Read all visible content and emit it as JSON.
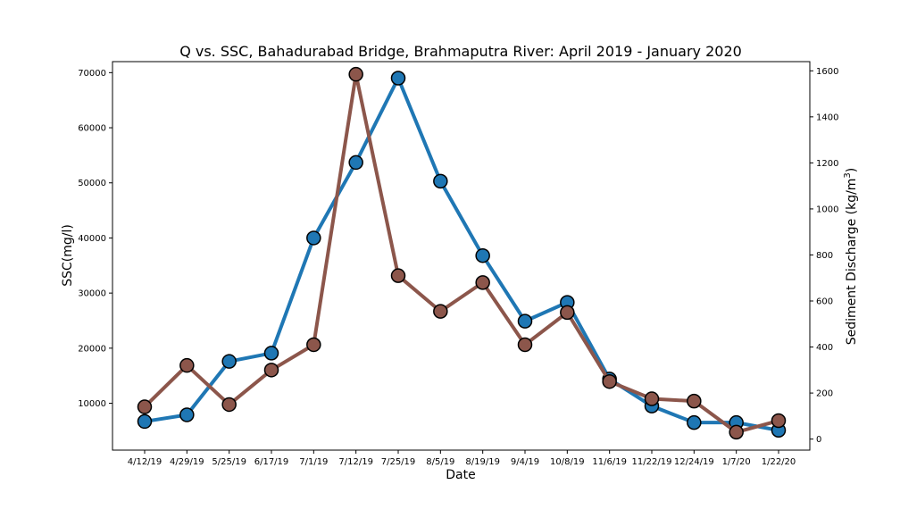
{
  "chart_data": {
    "type": "line",
    "title": "Q vs. SSC, Bahadurabad Bridge, Brahmaputra River: April 2019 - January 2020",
    "xlabel": "Date",
    "ylabel_left": "SSC(mg/l)",
    "ylabel_right_prefix": "Sediment Discharge (kg/m",
    "ylabel_right_sup": "3",
    "ylabel_right_suffix": ")",
    "categories": [
      "4/12/19",
      "4/29/19",
      "5/25/19",
      "6/17/19",
      "7/1/19",
      "7/12/19",
      "7/25/19",
      "8/5/19",
      "8/19/19",
      "9/4/19",
      "10/8/19",
      "11/6/19",
      "11/22/19",
      "12/24/19",
      "1/7/20",
      "1/22/20"
    ],
    "left_axis": {
      "ylim": [
        1500,
        72000
      ],
      "ticks": [
        10000,
        20000,
        30000,
        40000,
        50000,
        60000,
        70000
      ]
    },
    "right_axis": {
      "ylim": [
        -48,
        1640
      ],
      "ticks": [
        0,
        200,
        400,
        600,
        800,
        1000,
        1200,
        1400,
        1600
      ]
    },
    "series": [
      {
        "axis": "left",
        "color": "#1f77b4",
        "values": [
          6700,
          7900,
          17600,
          19100,
          40000,
          53700,
          69000,
          50300,
          36800,
          24900,
          28300,
          14400,
          9500,
          6500,
          6500,
          5100
        ]
      },
      {
        "axis": "right",
        "color": "#8c564b",
        "values": [
          140,
          320,
          150,
          300,
          410,
          1585,
          710,
          555,
          680,
          410,
          550,
          250,
          175,
          165,
          30,
          80
        ]
      }
    ],
    "grid": false,
    "marker_edge_color": "#000000"
  }
}
